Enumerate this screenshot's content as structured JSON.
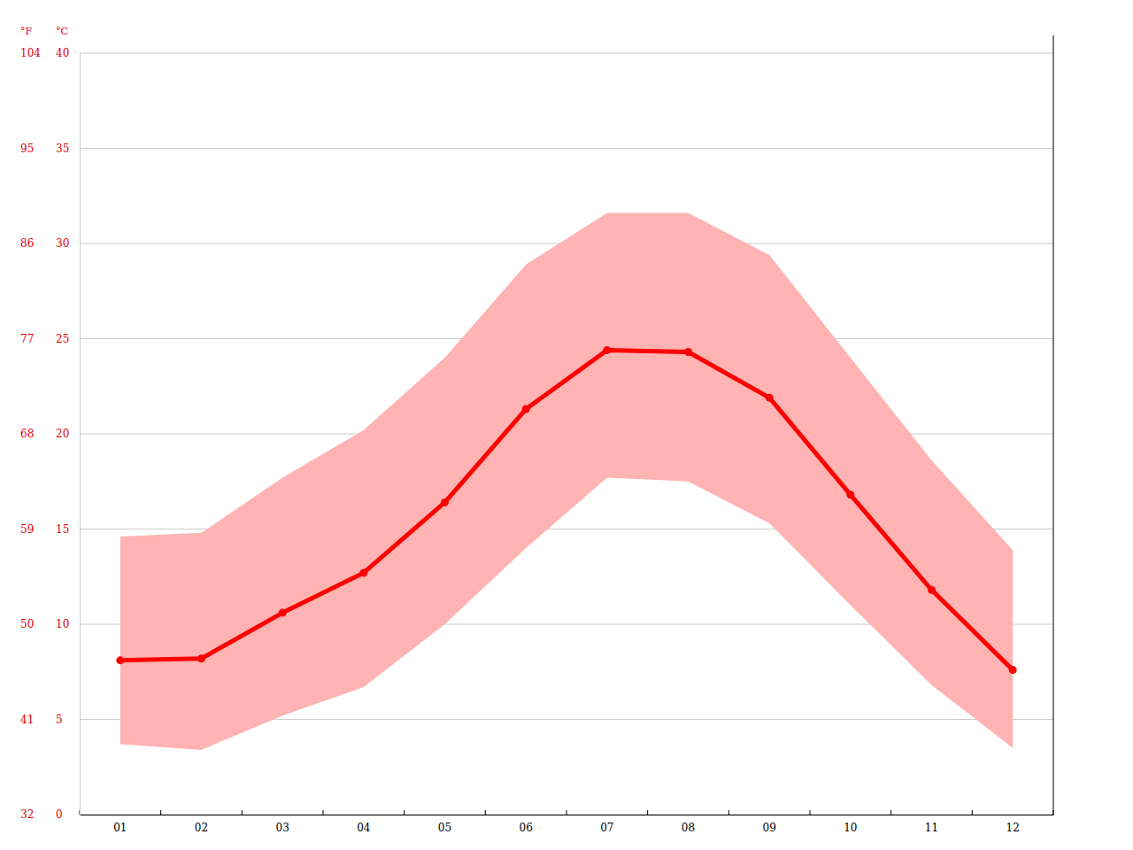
{
  "chart_data": {
    "type": "line",
    "categories": [
      "01",
      "02",
      "03",
      "04",
      "05",
      "06",
      "07",
      "08",
      "09",
      "10",
      "11",
      "12"
    ],
    "series": [
      {
        "type": "band",
        "color": "#ffb3b3",
        "values": [
          14.6,
          14.8,
          17.7,
          20.2,
          24.0,
          28.9,
          31.6,
          31.6,
          29.4,
          24.0,
          18.6,
          13.9
        ],
        "low": [
          3.7,
          3.4,
          5.2,
          6.7,
          10.0,
          14.0,
          17.7,
          17.5,
          15.3,
          11.0,
          6.8,
          3.5
        ]
      },
      {
        "type": "line",
        "color": "#ff0000",
        "marker": "circle",
        "line_style": "solid",
        "values": [
          8.1,
          8.2,
          10.6,
          12.7,
          16.4,
          21.3,
          24.4,
          24.3,
          21.9,
          16.8,
          11.8,
          7.6
        ]
      }
    ],
    "y_label": "°C",
    "ylim": [
      0,
      40
    ],
    "yticks": [
      0,
      5,
      10,
      15,
      20,
      25,
      30,
      35,
      40
    ],
    "y2_label": "°F",
    "y2lim": [
      32,
      104
    ],
    "y2ticks": [
      32,
      41,
      50,
      59,
      68,
      77,
      86,
      95,
      104
    ],
    "grid": true
  }
}
